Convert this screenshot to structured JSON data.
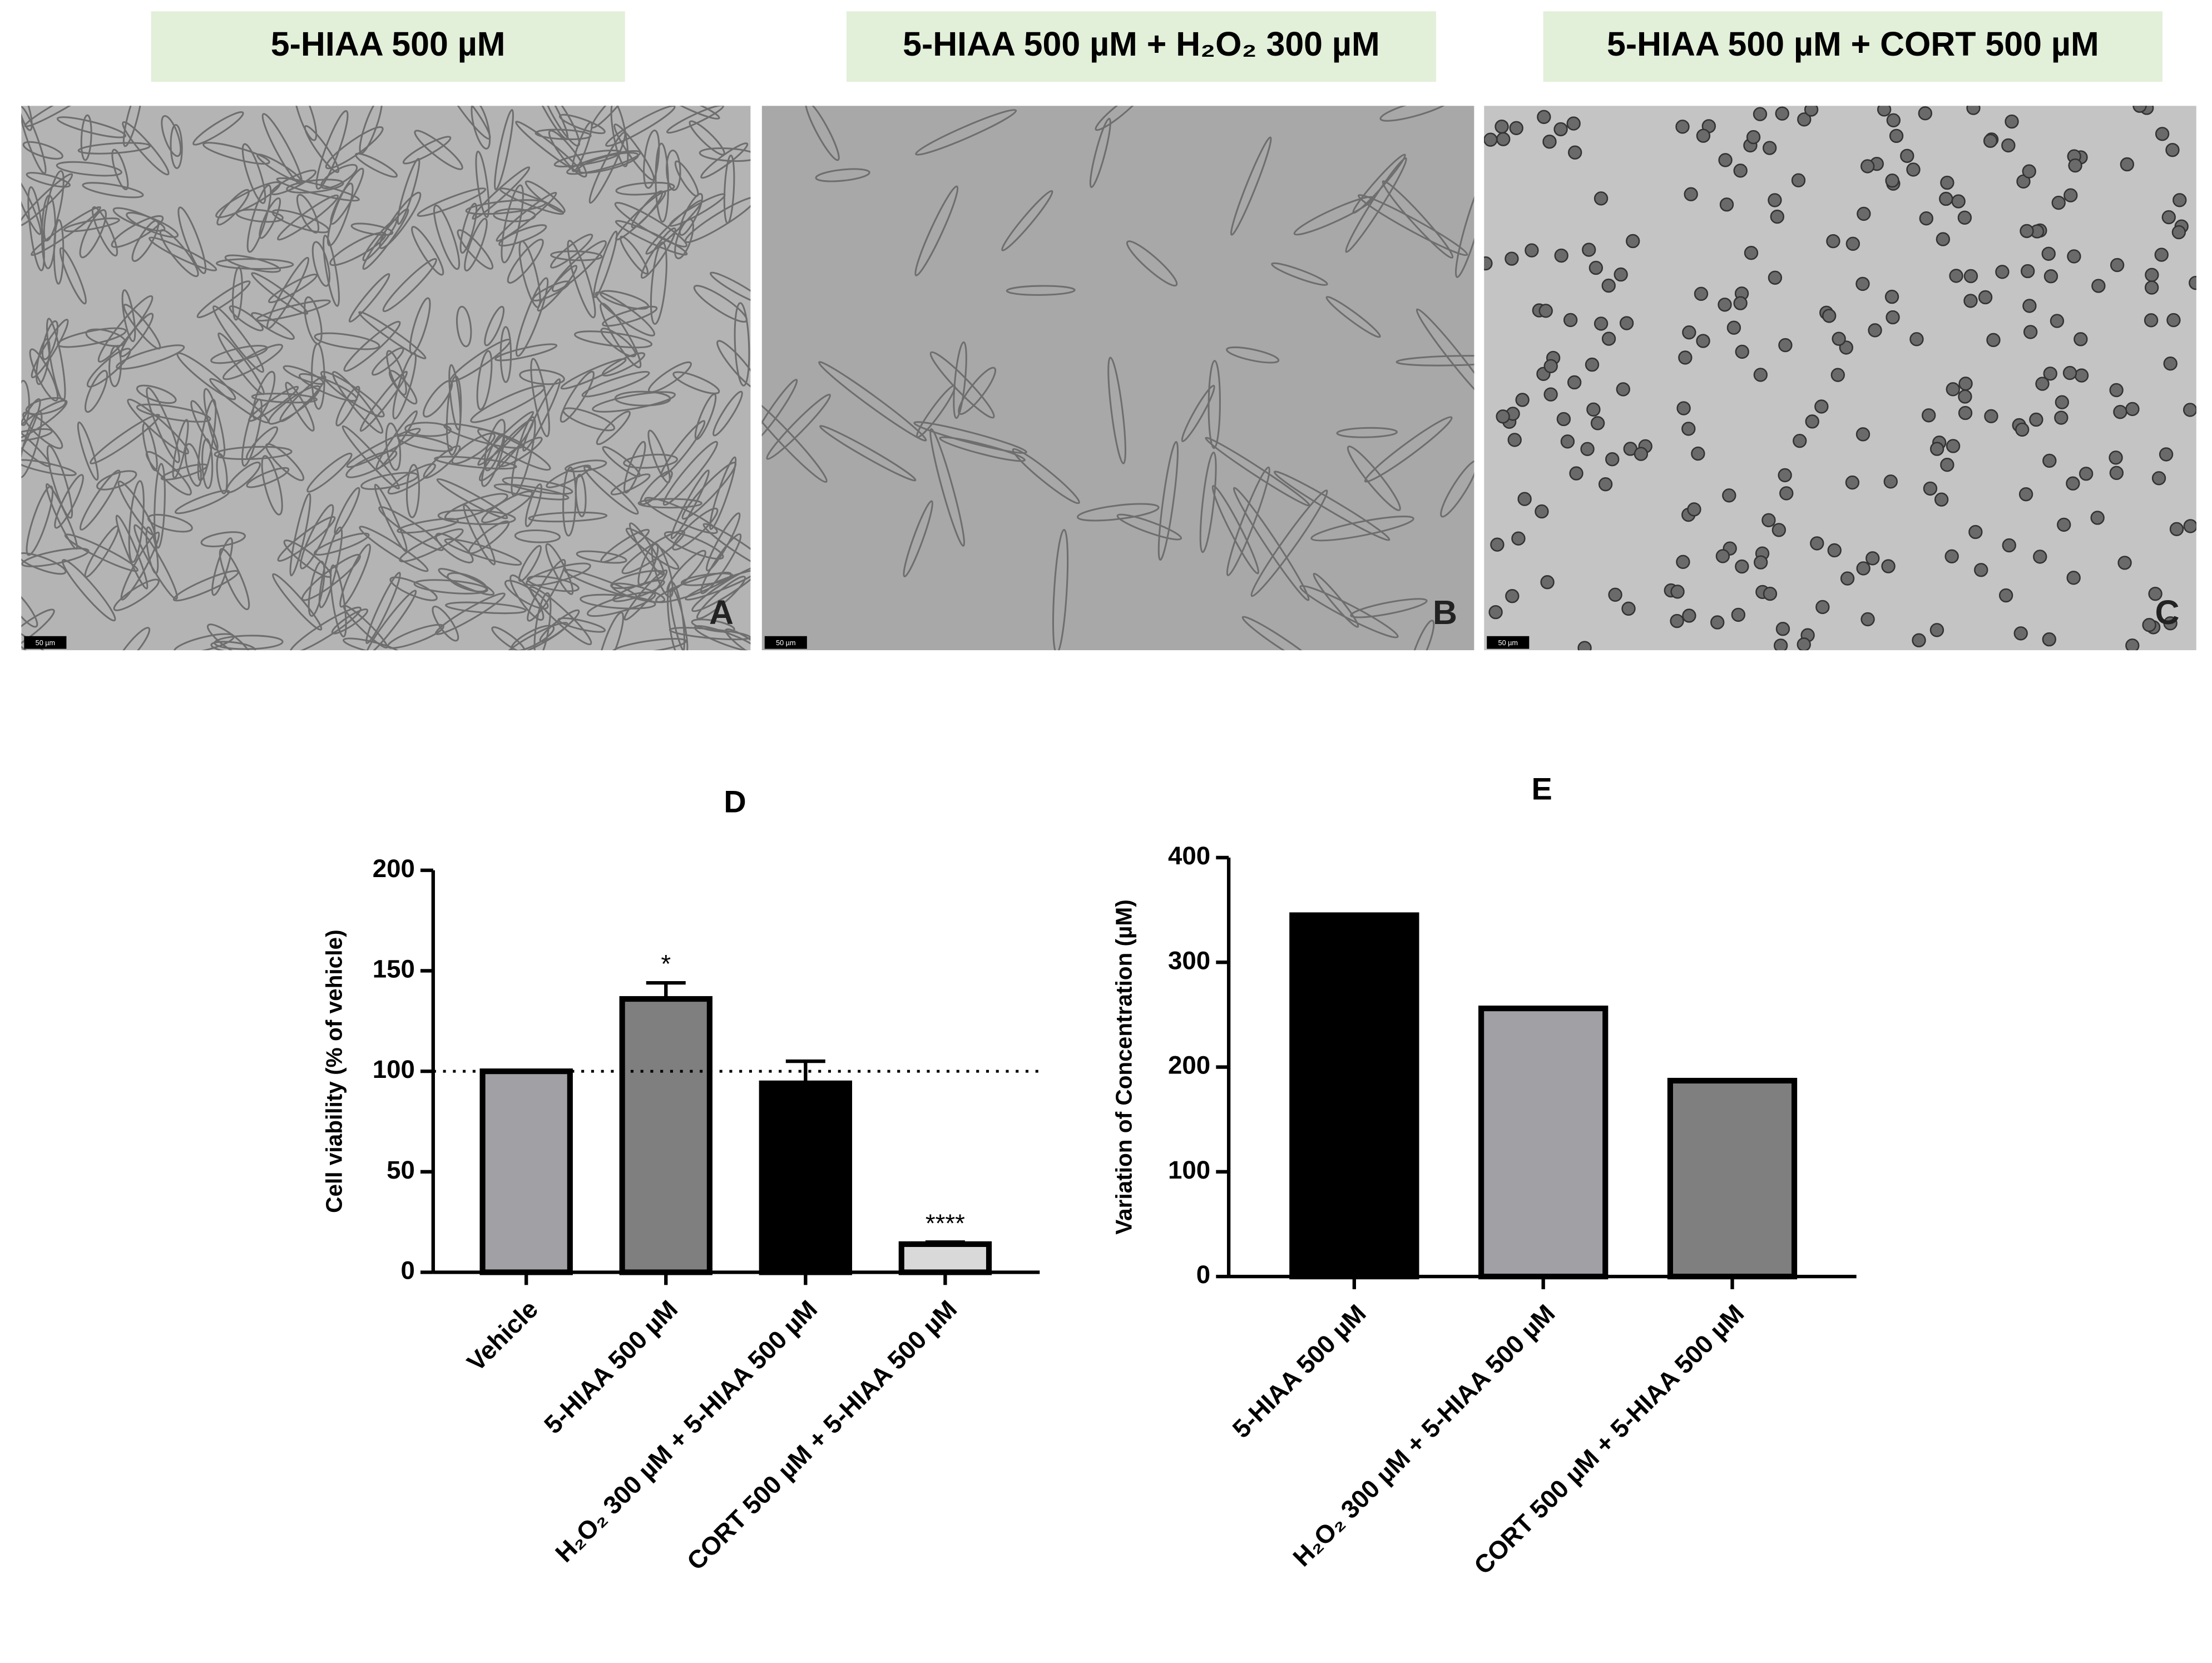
{
  "panels": [
    {
      "title": "5-HIAA 500 µM",
      "letter": "A",
      "scale_bar": "50 µm"
    },
    {
      "title": "5-HIAA 500 µM + H₂O₂ 300 µM",
      "letter": "B",
      "scale_bar": "50 µm"
    },
    {
      "title": "5-HIAA 500 µM + CORT 500 µM",
      "letter": "C",
      "scale_bar": "50 µm"
    }
  ],
  "chart_data": [
    {
      "type": "bar",
      "title": "D",
      "y_label": "Cell viability (% of vehicle)",
      "categories": [
        "Vehicle",
        "5-HIAA 500 µM",
        "H₂O₂ 300 µM + 5-HIAA 500 µM",
        "CORT 500 µM + 5-HIAA 500 µM"
      ],
      "values": [
        100,
        136,
        94,
        14
      ],
      "errors": [
        null,
        8,
        11,
        1
      ],
      "colors": [
        "#a0a0a5",
        "#7f7f7f",
        "#000000",
        "#d9d9d9"
      ],
      "annotations": [
        null,
        "*",
        null,
        "****"
      ],
      "reference_line": 100,
      "ylim": [
        0,
        200
      ],
      "yticks": [
        0,
        50,
        100,
        150,
        200
      ]
    },
    {
      "type": "bar",
      "title": "E",
      "y_label": "Variation of Concentration (µM)",
      "categories": [
        "5-HIAA 500 µM",
        "H₂O₂ 300 µM + 5-HIAA 500 µM",
        "CORT 500 µM + 5-HIAA 500 µM"
      ],
      "values": [
        345,
        256,
        187
      ],
      "colors": [
        "#000000",
        "#a0a0a5",
        "#7f7f7f"
      ],
      "ylim": [
        0,
        400
      ],
      "yticks": [
        0,
        100,
        200,
        300,
        400
      ]
    }
  ]
}
